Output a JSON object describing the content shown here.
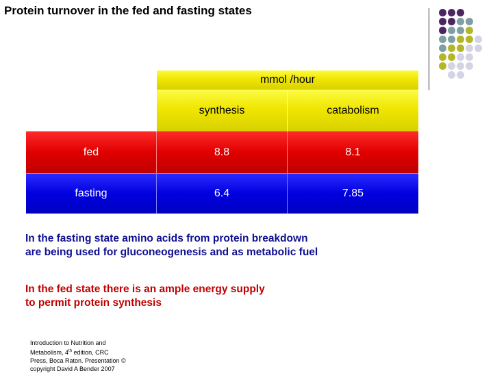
{
  "slide": {
    "title": "Protein turnover in the fed and fasting states",
    "table": {
      "unit_header": "mmol /hour",
      "columns": [
        "synthesis",
        "catabolism"
      ],
      "rows": [
        {
          "label": "fed",
          "values": [
            "8.8",
            "8.1"
          ]
        },
        {
          "label": "fasting",
          "values": [
            "6.4",
            "7.85"
          ]
        }
      ]
    },
    "notes": [
      {
        "lines": [
          "In the fasting state amino acids from protein breakdown",
          "are being used for gluconeogenesis and as metabolic fuel"
        ]
      },
      {
        "lines": [
          "In the fed state there is an ample energy supply",
          "to permit protein synthesis"
        ]
      }
    ],
    "credit": {
      "line1": "Introduction to Nutrition and",
      "line2_pre": "Metabolism, 4",
      "line2_sup": "th",
      "line2_post": " edition, CRC",
      "line3": "Press, Boca Raton. Presentation ©",
      "line4": "copyright David A Bender 2007"
    }
  },
  "colors": {
    "purple": "#4b2660",
    "teal": "#7f9fa3",
    "olive": "#b4b62a",
    "lavender": "#d4d4e4",
    "red_row": "#e00000",
    "blue_row": "#0000e0",
    "yellow_header": "#f0e600"
  }
}
